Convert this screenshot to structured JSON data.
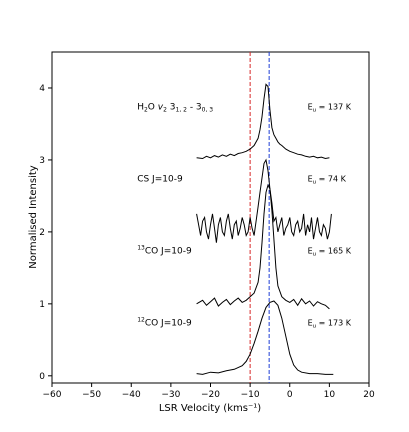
{
  "chart_data": {
    "type": "line",
    "title": "",
    "xlabel": "LSR Velocity (kms⁻¹)",
    "ylabel": "Normalised Intensity",
    "xlim": [
      -60,
      20
    ],
    "ylim": [
      -0.1,
      4.5
    ],
    "xticks": [
      -60,
      -50,
      -40,
      -30,
      -20,
      -10,
      0,
      10,
      20
    ],
    "xtick_labels": [
      "−60",
      "−50",
      "−40",
      "−30",
      "−20",
      "−10",
      "0",
      "10",
      "20"
    ],
    "yticks": [
      0,
      1,
      2,
      3,
      4
    ],
    "ytick_labels": [
      "0",
      "1",
      "2",
      "3",
      "4"
    ],
    "grid": false,
    "vlines": [
      {
        "x": -10,
        "color": "#d62728",
        "style": "dashed"
      },
      {
        "x": -5.2,
        "color": "#1f3fd6",
        "style": "dashed"
      }
    ],
    "series": [
      {
        "name": "¹²CO J=10-9",
        "label": {
          "iso": "12",
          "text": "CO J=10-9"
        },
        "energy": "Eᵤ = 173 K",
        "energy_label": {
          "pre": "E",
          "sub": "u",
          "post": " = 173 K"
        },
        "offset": 0,
        "x": [
          -23.5,
          -22,
          -20,
          -18,
          -16,
          -14,
          -12,
          -11,
          -10,
          -9,
          -8,
          -7,
          -6,
          -5,
          -4,
          -3,
          -2,
          -1,
          0,
          1,
          2,
          3,
          5,
          7,
          9,
          11
        ],
        "y": [
          0.03,
          0.02,
          0.05,
          0.04,
          0.07,
          0.09,
          0.14,
          0.2,
          0.3,
          0.45,
          0.62,
          0.8,
          0.95,
          1.02,
          1.04,
          0.98,
          0.8,
          0.55,
          0.3,
          0.15,
          0.08,
          0.05,
          0.03,
          0.03,
          0.02,
          0.02
        ]
      },
      {
        "name": "¹³CO J=10-9",
        "label": {
          "iso": "13",
          "text": "CO J=10-9"
        },
        "energy": "Eᵤ = 165 K",
        "energy_label": {
          "pre": "E",
          "sub": "u",
          "post": " = 165 K"
        },
        "offset": 1,
        "x": [
          -23.5,
          -22,
          -21,
          -20,
          -19,
          -18,
          -17,
          -16,
          -15,
          -14,
          -13,
          -12,
          -11,
          -10,
          -9,
          -8,
          -7.5,
          -7,
          -6.5,
          -6,
          -5.5,
          -5,
          -4.5,
          -4,
          -3.5,
          -3,
          -2,
          -1,
          0,
          1,
          2,
          3,
          4,
          5,
          6,
          7,
          8,
          9,
          10
        ],
        "y": [
          1.0,
          1.05,
          0.98,
          1.03,
          1.08,
          0.97,
          1.02,
          1.06,
          0.99,
          1.04,
          1.08,
          1.02,
          1.05,
          1.1,
          1.15,
          1.3,
          1.5,
          1.85,
          2.25,
          2.55,
          2.65,
          2.6,
          2.3,
          1.9,
          1.5,
          1.25,
          1.1,
          1.05,
          1.02,
          1.06,
          0.98,
          1.07,
          1.0,
          1.04,
          0.97,
          1.03,
          1.0,
          0.98,
          0.93
        ]
      },
      {
        "name": "CS J=10-9",
        "label": {
          "iso": "",
          "text": "CS J=10-9"
        },
        "energy": "Eᵤ = 74 K",
        "energy_label": {
          "pre": "E",
          "sub": "u",
          "post": " = 74 K"
        },
        "offset": 2,
        "x": [
          -23.5,
          -23,
          -22.5,
          -22,
          -21.5,
          -21,
          -20.5,
          -20,
          -19.5,
          -19,
          -18.5,
          -18,
          -17.5,
          -17,
          -16.5,
          -16,
          -15.5,
          -15,
          -14.5,
          -14,
          -13.5,
          -13,
          -12.5,
          -12,
          -11.5,
          -11,
          -10.5,
          -10,
          -9.5,
          -9,
          -8.5,
          -8,
          -7.5,
          -7,
          -6.5,
          -6,
          -5.5,
          -5,
          -4.5,
          -4,
          -3.5,
          -3,
          -2.5,
          -2,
          -1.5,
          -1,
          -0.5,
          0,
          0.5,
          1,
          1.5,
          2,
          2.5,
          3,
          3.5,
          4,
          4.5,
          5,
          5.5,
          6,
          6.5,
          7,
          7.5,
          8,
          8.5,
          9,
          9.5,
          10,
          10.5
        ],
        "y": [
          2.25,
          2.1,
          1.95,
          2.15,
          2.2,
          2.0,
          1.9,
          2.1,
          2.25,
          2.05,
          1.85,
          2.1,
          2.2,
          2.0,
          1.95,
          2.15,
          2.25,
          2.05,
          1.9,
          2.1,
          2.15,
          1.95,
          2.05,
          2.2,
          2.1,
          1.95,
          2.0,
          2.2,
          2.05,
          1.95,
          2.15,
          2.35,
          2.55,
          2.75,
          2.95,
          3.0,
          2.85,
          2.6,
          2.4,
          2.15,
          2.2,
          2.0,
          2.1,
          2.2,
          1.95,
          2.05,
          2.1,
          2.2,
          2.0,
          1.95,
          2.1,
          2.15,
          2.0,
          2.05,
          2.25,
          1.95,
          2.1,
          2.0,
          2.2,
          1.9,
          2.05,
          2.2,
          2.0,
          1.95,
          2.1,
          2.05,
          1.9,
          2.0,
          2.25
        ]
      },
      {
        "name": "H₂O ν₂ 3₁,₂ - 3₀,₃",
        "label": {
          "iso": "",
          "text": "H2O v2 31,2 - 30,3"
        },
        "energy": "Eᵤ = 137 K",
        "energy_label": {
          "pre": "E",
          "sub": "u",
          "post": " = 137 K"
        },
        "offset": 3,
        "x": [
          -23.5,
          -22,
          -21,
          -20,
          -19,
          -18,
          -17,
          -16,
          -15,
          -14,
          -13,
          -12,
          -11,
          -10,
          -9,
          -8,
          -7.5,
          -7,
          -6.5,
          -6,
          -5.5,
          -5,
          -4.5,
          -4,
          -3.5,
          -3,
          -2.5,
          -2,
          -1,
          0,
          1,
          2,
          3,
          4,
          5,
          6,
          7,
          8,
          9,
          10
        ],
        "y": [
          3.03,
          3.02,
          3.05,
          3.03,
          3.06,
          3.04,
          3.07,
          3.05,
          3.08,
          3.06,
          3.09,
          3.1,
          3.12,
          3.15,
          3.2,
          3.3,
          3.42,
          3.6,
          3.85,
          4.05,
          4.02,
          3.7,
          3.45,
          3.35,
          3.3,
          3.25,
          3.22,
          3.2,
          3.15,
          3.12,
          3.1,
          3.08,
          3.07,
          3.05,
          3.04,
          3.05,
          3.03,
          3.04,
          3.02,
          3.03
        ]
      }
    ]
  }
}
